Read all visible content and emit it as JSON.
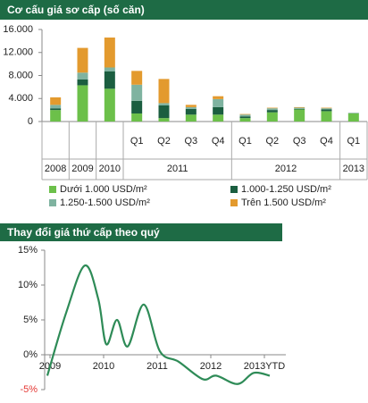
{
  "chart_data": [
    {
      "type": "stacked-bar",
      "title": "Cơ cấu giá sơ cấp (số căn)",
      "groups": [
        {
          "label": "2008",
          "categories": [
            null
          ]
        },
        {
          "label": "2009",
          "categories": [
            null
          ]
        },
        {
          "label": "2010",
          "categories": [
            null
          ]
        },
        {
          "label": "2011",
          "categories": [
            "Q1",
            "Q2",
            "Q3",
            "Q4"
          ]
        },
        {
          "label": "2012",
          "categories": [
            "Q1",
            "Q2",
            "Q3",
            "Q4"
          ]
        },
        {
          "label": "2013",
          "categories": [
            "Q1"
          ]
        }
      ],
      "series": [
        {
          "name": "Dưới 1.000 USD/m²",
          "color": "#6cc04a",
          "values": [
            2000,
            6300,
            5700,
            1400,
            600,
            1200,
            1200,
            600,
            1600,
            2100,
            1800,
            1400
          ]
        },
        {
          "name": "1.000-1.250 USD/m²",
          "color": "#1b5e40",
          "values": [
            300,
            1000,
            3000,
            2200,
            2200,
            1000,
            1300,
            300,
            400,
            100,
            300,
            50
          ]
        },
        {
          "name": "1.250-1.500 USD/m²",
          "color": "#7fb3a0",
          "values": [
            600,
            1200,
            700,
            2800,
            400,
            300,
            1400,
            300,
            300,
            200,
            200,
            50
          ]
        },
        {
          "name": "Trên 1.500 USD/m²",
          "color": "#e39a2e",
          "values": [
            1300,
            4300,
            5200,
            2400,
            4200,
            400,
            500,
            100,
            100,
            100,
            100,
            0
          ]
        }
      ],
      "ylim": [
        0,
        16000
      ],
      "yticks": [
        0,
        {
          "value": 4000,
          "label": "4.000"
        },
        {
          "value": 8000,
          "label": "8.000"
        },
        {
          "value": 12000,
          "label": "12.000"
        },
        {
          "value": 16000,
          "label": "16.000"
        }
      ]
    },
    {
      "type": "line",
      "title": "Thay đổi giá thứ cấp theo quý",
      "x": [
        2008.95,
        2009.3,
        2009.65,
        2009.9,
        2010.05,
        2010.25,
        2010.45,
        2010.75,
        2011.05,
        2011.4,
        2011.85,
        2012.1,
        2012.5,
        2012.8,
        2013.1
      ],
      "values": [
        -3,
        6,
        12.8,
        8,
        1.5,
        5,
        1.2,
        7.2,
        0.5,
        -1,
        -3.5,
        -3,
        -4.2,
        -2.6,
        -3
      ],
      "color": "#2e8b57",
      "xlim": [
        2008.9,
        2013.4
      ],
      "xticks": [
        2009,
        2010,
        2011,
        2012,
        {
          "value": 2013,
          "label": "2013YTD"
        }
      ],
      "ylim": [
        -5,
        15
      ],
      "yticks": [
        {
          "value": -5,
          "label": "-5%"
        },
        {
          "value": 0,
          "label": "0%"
        },
        {
          "value": 5,
          "label": "5%"
        },
        {
          "value": 10,
          "label": "10%"
        },
        {
          "value": 15,
          "label": "15%"
        }
      ],
      "negative_tick_color": "#e53935"
    }
  ]
}
